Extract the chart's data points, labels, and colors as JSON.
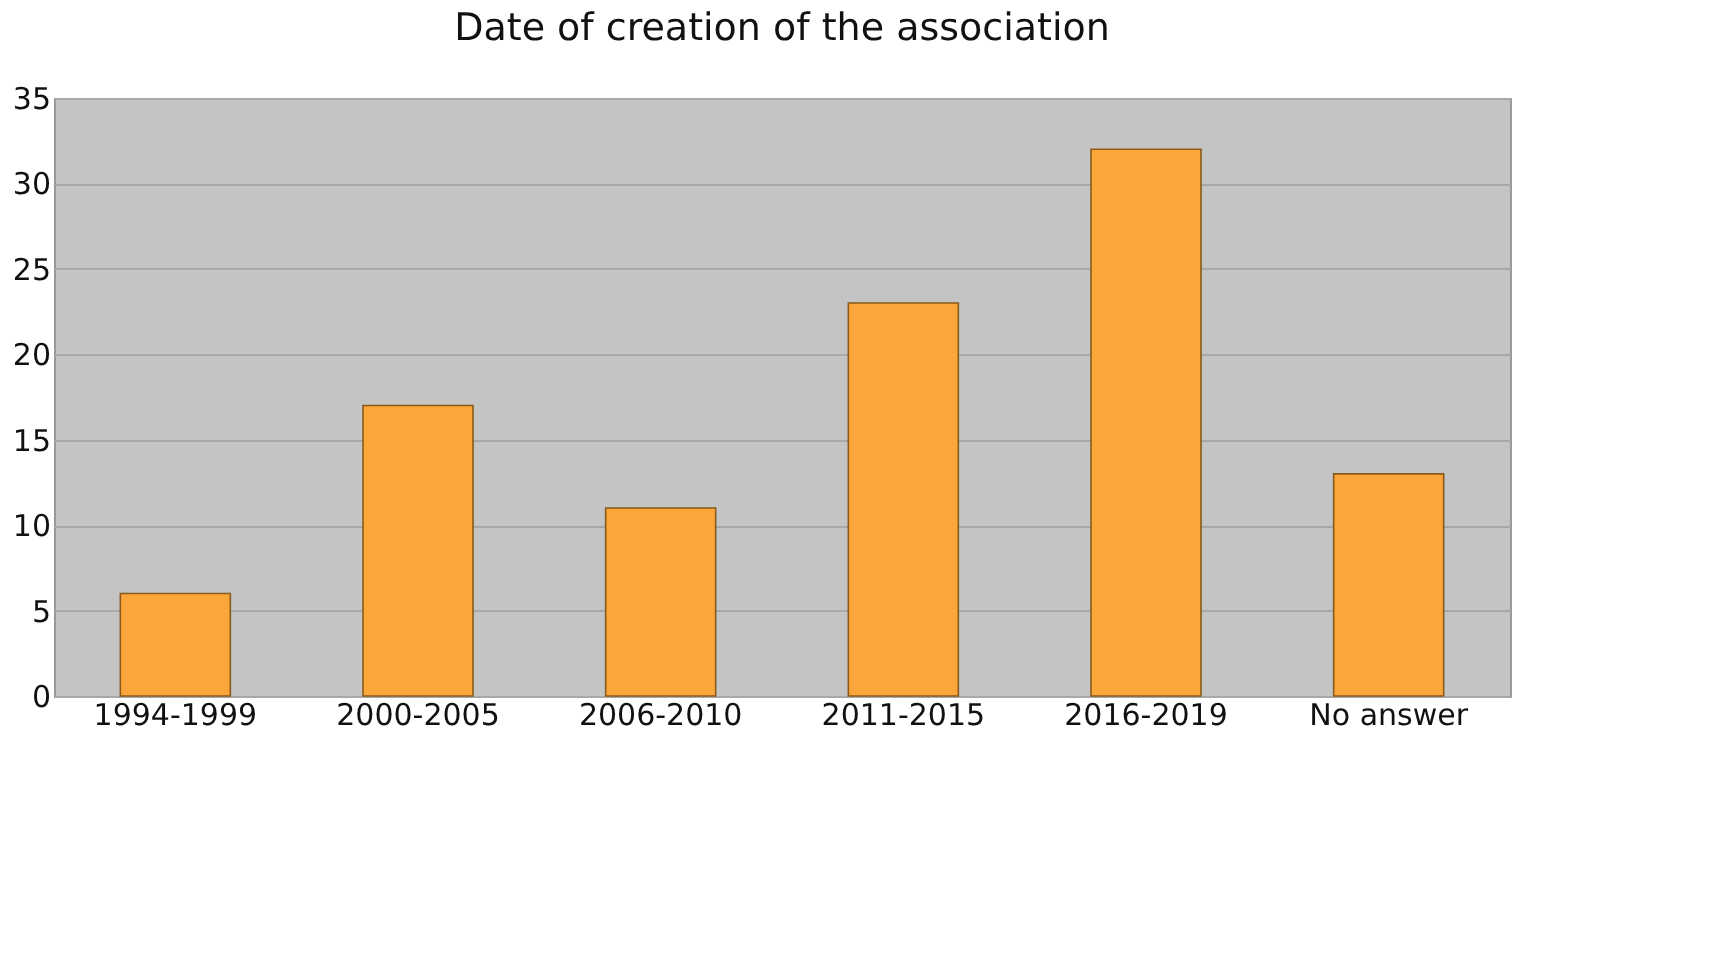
{
  "chart_data": {
    "type": "bar",
    "title": "Date of creation of the association",
    "categories": [
      "1994-1999",
      "2000-2005",
      "2006-2010",
      "2011-2015",
      "2016-2019",
      "No answer"
    ],
    "values": [
      6,
      17,
      11,
      23,
      32,
      13
    ],
    "color": "#fba63a",
    "ylim": [
      0,
      35
    ],
    "yticks": [
      0,
      5,
      10,
      15,
      20,
      25,
      30,
      35
    ],
    "grid": "y"
  }
}
